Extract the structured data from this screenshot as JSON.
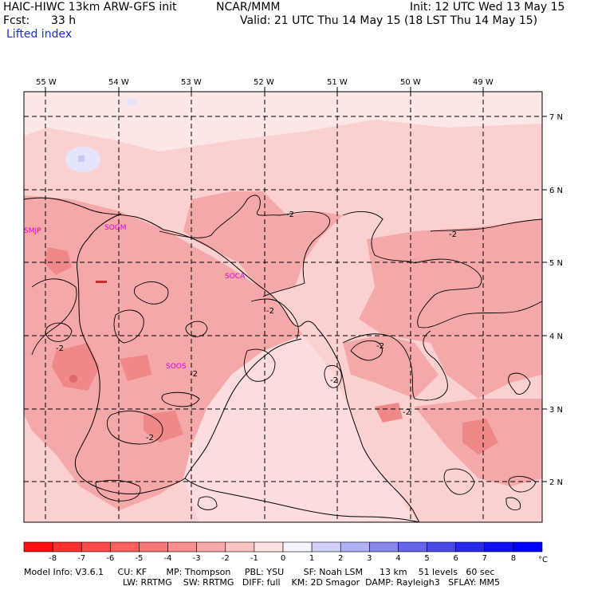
{
  "header": {
    "title_left": "HAIC-HIWC 13km ARW-GFS init",
    "org": "NCAR/MMM",
    "init": "Init: 12 UTC Wed 13 May 15",
    "fcst_label": "Fcst:",
    "fcst_value": "33 h",
    "valid": "Valid: 21 UTC Thu 14 May 15 (18 LST Thu 14 May 15)",
    "field": "Lifted index"
  },
  "map": {
    "lon_labels": [
      "55 W",
      "54 W",
      "53 W",
      "52 W",
      "51 W",
      "50 W",
      "49 W"
    ],
    "lat_labels": [
      "7 N",
      "6 N",
      "5 N",
      "4 N",
      "3 N",
      "2 N"
    ],
    "stations": [
      "SMJP",
      "SOGM",
      "SOCA",
      "SOOS"
    ],
    "contour_labels": [
      "-2",
      "-2",
      "-2",
      "-2",
      "-2",
      "-2",
      "-2",
      "-2",
      "-2"
    ],
    "colors": {
      "background": "#fbd0d0",
      "light": "#fde6e6",
      "medium": "#f5a8a8",
      "strong": "#ef8888",
      "positive": "#e4e4fc",
      "station": "#e000e0"
    }
  },
  "colorbar": {
    "ticks": [
      "-8",
      "-7",
      "-6",
      "-5",
      "-4",
      "-3",
      "-2",
      "-1",
      "0",
      "1",
      "2",
      "3",
      "4",
      "5",
      "6",
      "7",
      "8"
    ],
    "unit": "°C",
    "colors": [
      "#ff1010",
      "#ff3030",
      "#ff4848",
      "#ff6060",
      "#f87878",
      "#f89090",
      "#f8a8a8",
      "#fbc4c4",
      "#fde2e2",
      "#f4f4ff",
      "#d0d0f8",
      "#b0b0f4",
      "#8888ec",
      "#6464e8",
      "#4848e8",
      "#2828e8",
      "#1010f0",
      "#0000ff"
    ]
  },
  "footer": {
    "line1": "Model Info: V3.6.1     CU: KF       MP: Thompson     PBL: YSU       SF: Noah LSM      13 km    51 levels   60 sec",
    "line2": "LW: RRTMG    SW: RRTMG   DIFF: full    KM: 2D Smagor  DAMP: Rayleigh3   SFLAY: MM5"
  }
}
